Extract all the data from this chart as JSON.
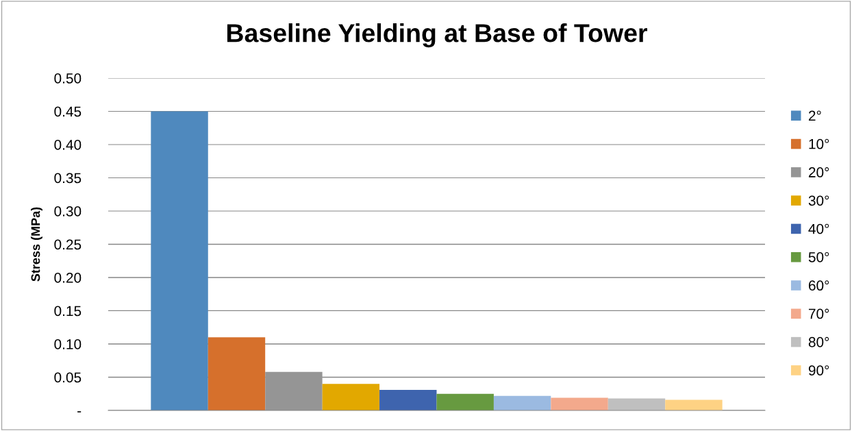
{
  "chart_data": {
    "type": "bar",
    "title": "Baseline Yielding at Base of Tower",
    "ylabel": "Stress (MPa)",
    "categories": [
      null
    ],
    "series": [
      {
        "name": "2°",
        "color": "#4f89be",
        "values": [
          0.45
        ]
      },
      {
        "name": "10°",
        "color": "#d6702c",
        "values": [
          0.11
        ]
      },
      {
        "name": "20°",
        "color": "#959595",
        "values": [
          0.058
        ]
      },
      {
        "name": "30°",
        "color": "#e2a800",
        "values": [
          0.04
        ]
      },
      {
        "name": "40°",
        "color": "#3e64ae",
        "values": [
          0.031
        ]
      },
      {
        "name": "50°",
        "color": "#679a40",
        "values": [
          0.025
        ]
      },
      {
        "name": "60°",
        "color": "#9bbae1",
        "values": [
          0.022
        ]
      },
      {
        "name": "70°",
        "color": "#f3a98c",
        "values": [
          0.019
        ]
      },
      {
        "name": "80°",
        "color": "#bfbfbf",
        "values": [
          0.018
        ]
      },
      {
        "name": "90°",
        "color": "#fed284",
        "values": [
          0.016
        ]
      }
    ],
    "ylim": [
      0,
      0.5
    ],
    "yticks": [
      {
        "value": 0,
        "label": "-"
      },
      {
        "value": 0.05,
        "label": "0.05"
      },
      {
        "value": 0.1,
        "label": "0.10"
      },
      {
        "value": 0.15,
        "label": "0.15"
      },
      {
        "value": 0.2,
        "label": "0.20"
      },
      {
        "value": 0.25,
        "label": "0.25"
      },
      {
        "value": 0.3,
        "label": "0.30"
      },
      {
        "value": 0.35,
        "label": "0.35"
      },
      {
        "value": 0.4,
        "label": "0.40"
      },
      {
        "value": 0.45,
        "label": "0.45"
      },
      {
        "value": 0.5,
        "label": "0.50"
      }
    ],
    "grid": "y",
    "legend": "right"
  }
}
